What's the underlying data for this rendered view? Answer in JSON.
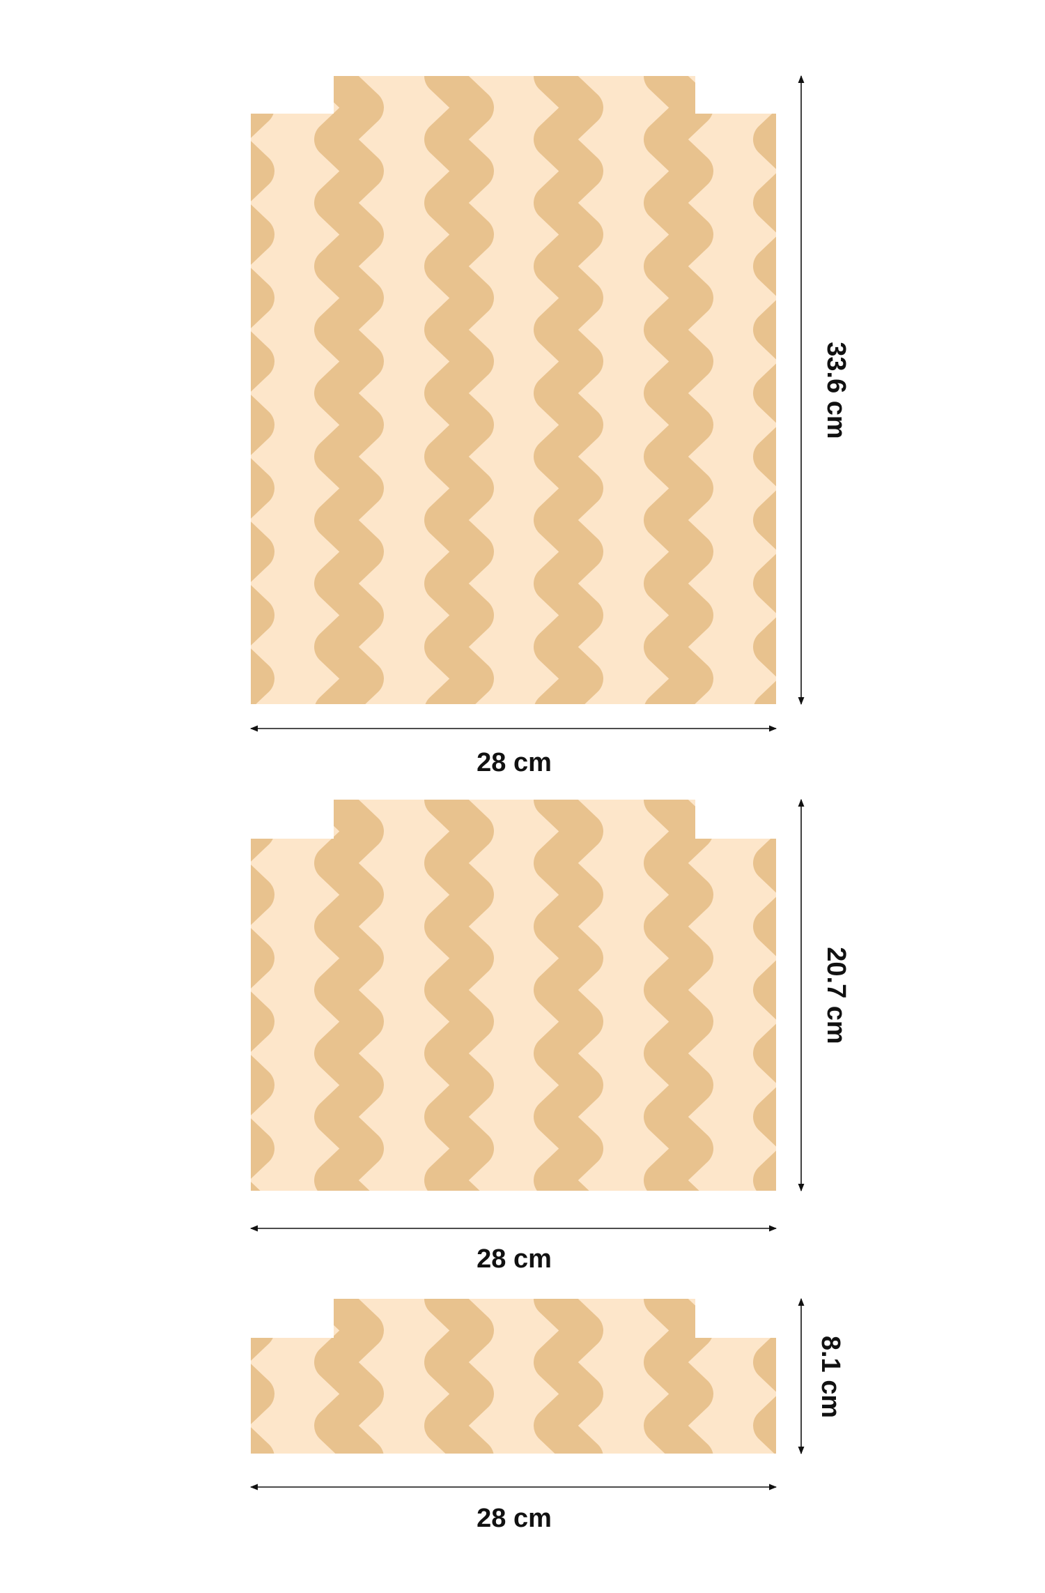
{
  "colors": {
    "light": "#FDE6CA",
    "dark": "#E8C28E",
    "line": "#111111"
  },
  "panels": [
    {
      "width_label": "28 cm",
      "height_label": "33.6 cm"
    },
    {
      "width_label": "28 cm",
      "height_label": "20.7 cm"
    },
    {
      "width_label": "28 cm",
      "height_label": "8.1 cm"
    }
  ]
}
